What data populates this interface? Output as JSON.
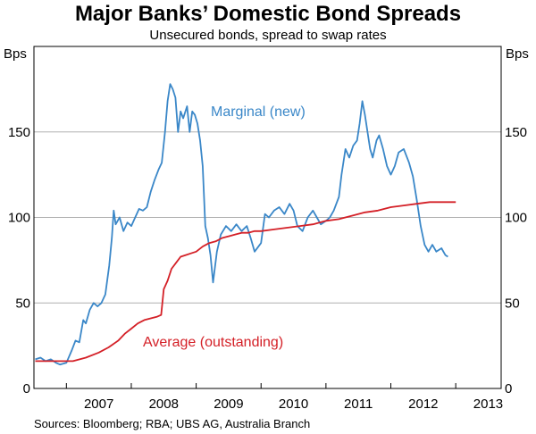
{
  "chart_data": {
    "type": "line",
    "title": "Major Banks’ Domestic Bond Spreads",
    "subtitle": "Unsecured bonds, spread to swap rates",
    "ylabel_left": "Bps",
    "ylabel_right": "Bps",
    "ylim": [
      0,
      200
    ],
    "yticks": [
      0,
      50,
      100,
      150
    ],
    "xlim": [
      2006.5,
      2013.7
    ],
    "xticks": [
      "2007",
      "2008",
      "2009",
      "2010",
      "2011",
      "2012",
      "2013"
    ],
    "grid": true,
    "source": "Sources: Bloomberg; RBA; UBS AG, Australia Branch",
    "series": [
      {
        "name": "Marginal (new)",
        "color": "#3a87c8",
        "points": [
          [
            2006.52,
            17
          ],
          [
            2006.6,
            18
          ],
          [
            2006.68,
            16
          ],
          [
            2006.76,
            17
          ],
          [
            2006.84,
            15
          ],
          [
            2006.9,
            14
          ],
          [
            2007.0,
            15
          ],
          [
            2007.08,
            22
          ],
          [
            2007.14,
            28
          ],
          [
            2007.2,
            27
          ],
          [
            2007.26,
            40
          ],
          [
            2007.3,
            38
          ],
          [
            2007.36,
            46
          ],
          [
            2007.42,
            50
          ],
          [
            2007.48,
            48
          ],
          [
            2007.54,
            50
          ],
          [
            2007.6,
            55
          ],
          [
            2007.66,
            72
          ],
          [
            2007.7,
            88
          ],
          [
            2007.73,
            104
          ],
          [
            2007.76,
            96
          ],
          [
            2007.82,
            100
          ],
          [
            2007.88,
            92
          ],
          [
            2007.94,
            97
          ],
          [
            2008.0,
            95
          ],
          [
            2008.06,
            100
          ],
          [
            2008.12,
            105
          ],
          [
            2008.18,
            104
          ],
          [
            2008.24,
            106
          ],
          [
            2008.3,
            115
          ],
          [
            2008.36,
            122
          ],
          [
            2008.42,
            128
          ],
          [
            2008.47,
            132
          ],
          [
            2008.52,
            150
          ],
          [
            2008.56,
            168
          ],
          [
            2008.6,
            178
          ],
          [
            2008.64,
            175
          ],
          [
            2008.68,
            170
          ],
          [
            2008.72,
            150
          ],
          [
            2008.76,
            162
          ],
          [
            2008.8,
            158
          ],
          [
            2008.86,
            165
          ],
          [
            2008.9,
            150
          ],
          [
            2008.94,
            162
          ],
          [
            2008.98,
            160
          ],
          [
            2009.02,
            155
          ],
          [
            2009.06,
            145
          ],
          [
            2009.1,
            130
          ],
          [
            2009.14,
            95
          ],
          [
            2009.18,
            88
          ],
          [
            2009.22,
            78
          ],
          [
            2009.26,
            62
          ],
          [
            2009.32,
            80
          ],
          [
            2009.38,
            90
          ],
          [
            2009.46,
            95
          ],
          [
            2009.54,
            92
          ],
          [
            2009.62,
            96
          ],
          [
            2009.7,
            92
          ],
          [
            2009.78,
            95
          ],
          [
            2009.84,
            88
          ],
          [
            2009.9,
            80
          ],
          [
            2010.0,
            85
          ],
          [
            2010.06,
            102
          ],
          [
            2010.12,
            100
          ],
          [
            2010.2,
            104
          ],
          [
            2010.28,
            106
          ],
          [
            2010.36,
            102
          ],
          [
            2010.44,
            108
          ],
          [
            2010.5,
            104
          ],
          [
            2010.56,
            95
          ],
          [
            2010.64,
            92
          ],
          [
            2010.72,
            100
          ],
          [
            2010.8,
            104
          ],
          [
            2010.86,
            100
          ],
          [
            2010.92,
            96
          ],
          [
            2011.0,
            98
          ],
          [
            2011.06,
            100
          ],
          [
            2011.12,
            104
          ],
          [
            2011.2,
            112
          ],
          [
            2011.24,
            125
          ],
          [
            2011.3,
            140
          ],
          [
            2011.36,
            135
          ],
          [
            2011.42,
            142
          ],
          [
            2011.48,
            145
          ],
          [
            2011.52,
            155
          ],
          [
            2011.56,
            168
          ],
          [
            2011.6,
            160
          ],
          [
            2011.64,
            150
          ],
          [
            2011.68,
            140
          ],
          [
            2011.72,
            135
          ],
          [
            2011.78,
            145
          ],
          [
            2011.82,
            148
          ],
          [
            2011.88,
            140
          ],
          [
            2011.94,
            130
          ],
          [
            2012.0,
            125
          ],
          [
            2012.06,
            130
          ],
          [
            2012.12,
            138
          ],
          [
            2012.2,
            140
          ],
          [
            2012.28,
            132
          ],
          [
            2012.34,
            124
          ],
          [
            2012.4,
            110
          ],
          [
            2012.46,
            95
          ],
          [
            2012.52,
            84
          ],
          [
            2012.58,
            80
          ],
          [
            2012.64,
            84
          ],
          [
            2012.7,
            80
          ],
          [
            2012.78,
            82
          ],
          [
            2012.84,
            78
          ],
          [
            2012.88,
            77
          ]
        ]
      },
      {
        "name": "Average (outstanding)",
        "color": "#d42027",
        "points": [
          [
            2006.52,
            16
          ],
          [
            2006.7,
            16
          ],
          [
            2006.9,
            16
          ],
          [
            2007.1,
            16
          ],
          [
            2007.3,
            18
          ],
          [
            2007.5,
            21
          ],
          [
            2007.65,
            24
          ],
          [
            2007.8,
            28
          ],
          [
            2007.9,
            32
          ],
          [
            2008.0,
            35
          ],
          [
            2008.1,
            38
          ],
          [
            2008.2,
            40
          ],
          [
            2008.3,
            41
          ],
          [
            2008.4,
            42
          ],
          [
            2008.46,
            43
          ],
          [
            2008.5,
            58
          ],
          [
            2008.56,
            63
          ],
          [
            2008.62,
            70
          ],
          [
            2008.7,
            74
          ],
          [
            2008.76,
            77
          ],
          [
            2008.84,
            78
          ],
          [
            2008.92,
            79
          ],
          [
            2009.0,
            80
          ],
          [
            2009.1,
            83
          ],
          [
            2009.2,
            85
          ],
          [
            2009.3,
            86
          ],
          [
            2009.4,
            88
          ],
          [
            2009.5,
            89
          ],
          [
            2009.6,
            90
          ],
          [
            2009.7,
            91
          ],
          [
            2009.8,
            91
          ],
          [
            2009.9,
            92
          ],
          [
            2010.0,
            92
          ],
          [
            2010.2,
            93
          ],
          [
            2010.4,
            94
          ],
          [
            2010.6,
            95
          ],
          [
            2010.8,
            96
          ],
          [
            2011.0,
            98
          ],
          [
            2011.2,
            99
          ],
          [
            2011.4,
            101
          ],
          [
            2011.6,
            103
          ],
          [
            2011.8,
            104
          ],
          [
            2012.0,
            106
          ],
          [
            2012.2,
            107
          ],
          [
            2012.4,
            108
          ],
          [
            2012.6,
            109
          ],
          [
            2012.8,
            109
          ],
          [
            2013.0,
            109
          ]
        ]
      }
    ]
  },
  "annotations": {
    "marginal_label": "Marginal (new)",
    "average_label": "Average (outstanding)",
    "marginal_color": "#3a87c8",
    "average_color": "#d42027"
  }
}
